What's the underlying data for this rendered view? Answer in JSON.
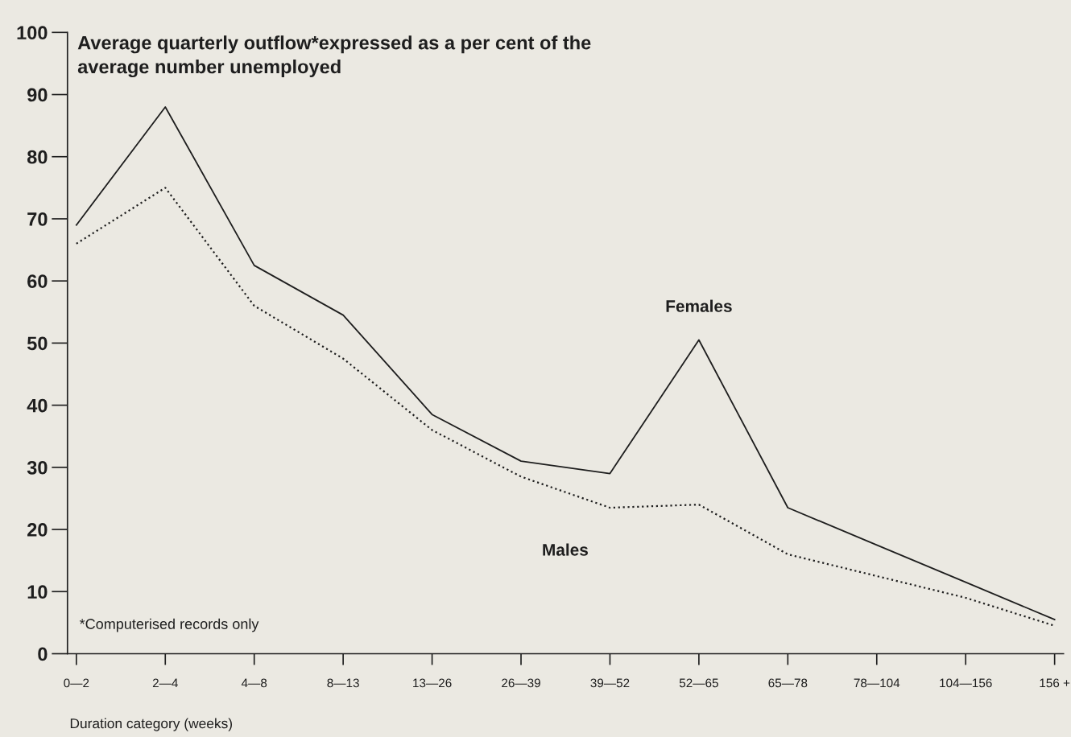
{
  "chart_data": {
    "type": "line",
    "title": "Average quarterly outflow*expressed as a per cent of the average number unemployed",
    "xlabel": "Duration category (weeks)",
    "categories": [
      "0—2",
      "2—4",
      "4—8",
      "8—13",
      "13—26",
      "26—39",
      "39—52",
      "52—65",
      "65—78",
      "78—104",
      "104—156",
      "156 +"
    ],
    "ylim": [
      0,
      100
    ],
    "yticks": [
      0,
      10,
      20,
      30,
      40,
      50,
      60,
      70,
      80,
      90,
      100
    ],
    "series": [
      {
        "name": "Females",
        "color": "#1e1e1e",
        "line_style": "solid",
        "values": [
          69,
          88,
          62.5,
          54.5,
          38.5,
          31,
          29,
          50.5,
          23.5,
          17.5,
          11.5,
          5.5
        ]
      },
      {
        "name": "Males",
        "color": "#1e1e1e",
        "line_style": "dotted",
        "values": [
          66,
          75,
          56,
          47.5,
          36,
          28.5,
          23.5,
          24,
          16,
          12.5,
          9,
          4.5
        ]
      }
    ],
    "annotations": [
      "*Computerised records only"
    ],
    "grid": false,
    "legend": false,
    "marker": "none"
  }
}
